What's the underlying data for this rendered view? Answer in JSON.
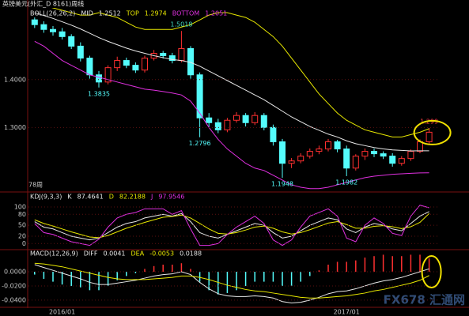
{
  "watermark": "FX678 汇通网",
  "chart_data": [
    {
      "type": "candlestick",
      "title": "英镑美元(外汇_D 8161)周线",
      "indicator": "BOLL(26,26,2)",
      "open": [
        1.525,
        1.515,
        1.505,
        1.5,
        1.49,
        1.47,
        1.445,
        1.41,
        1.395,
        1.425,
        1.44,
        1.43,
        1.42,
        1.445,
        1.455,
        1.45,
        1.44,
        1.465,
        1.41,
        1.32,
        1.31,
        1.295,
        1.315,
        1.325,
        1.31,
        1.325,
        1.3,
        1.27,
        1.225,
        1.23,
        1.24,
        1.25,
        1.255,
        1.27,
        1.255,
        1.215,
        1.24,
        1.25,
        1.245,
        1.24,
        1.225,
        1.235,
        1.25,
        1.27
      ],
      "high": [
        1.53,
        1.522,
        1.512,
        1.508,
        1.495,
        1.478,
        1.45,
        1.418,
        1.43,
        1.448,
        1.446,
        1.436,
        1.45,
        1.462,
        1.46,
        1.456,
        1.5018,
        1.47,
        1.415,
        1.33,
        1.318,
        1.32,
        1.332,
        1.33,
        1.332,
        1.33,
        1.306,
        1.276,
        1.236,
        1.246,
        1.256,
        1.262,
        1.276,
        1.274,
        1.262,
        1.244,
        1.256,
        1.256,
        1.25,
        1.246,
        1.24,
        1.254,
        1.275,
        1.299
      ],
      "low": [
        1.508,
        1.498,
        1.492,
        1.484,
        1.464,
        1.438,
        1.402,
        1.3835,
        1.39,
        1.418,
        1.424,
        1.414,
        1.415,
        1.44,
        1.444,
        1.434,
        1.436,
        1.402,
        1.2796,
        1.3,
        1.288,
        1.29,
        1.31,
        1.302,
        1.305,
        1.294,
        1.262,
        1.1948,
        1.215,
        1.225,
        1.235,
        1.244,
        1.25,
        1.248,
        1.1982,
        1.21,
        1.232,
        1.238,
        1.234,
        1.218,
        1.22,
        1.23,
        1.246,
        1.266
      ],
      "close": [
        1.515,
        1.505,
        1.5,
        1.49,
        1.47,
        1.445,
        1.41,
        1.395,
        1.425,
        1.44,
        1.43,
        1.42,
        1.445,
        1.455,
        1.45,
        1.44,
        1.465,
        1.41,
        1.32,
        1.31,
        1.295,
        1.315,
        1.325,
        1.31,
        1.325,
        1.3,
        1.27,
        1.225,
        1.23,
        1.24,
        1.25,
        1.255,
        1.27,
        1.255,
        1.215,
        1.24,
        1.25,
        1.245,
        1.24,
        1.225,
        1.235,
        1.25,
        1.27,
        1.29
      ],
      "up_color": "#ff3030",
      "down_color": "#54fcfc",
      "series": [
        {
          "name": "MID",
          "color": "#e8e8e8",
          "values": [
            1.54,
            1.534,
            1.528,
            1.521,
            1.514,
            1.506,
            1.497,
            1.488,
            1.48,
            1.473,
            1.466,
            1.46,
            1.455,
            1.45,
            1.446,
            1.442,
            1.44,
            1.436,
            1.428,
            1.418,
            1.408,
            1.398,
            1.388,
            1.378,
            1.368,
            1.358,
            1.346,
            1.334,
            1.322,
            1.312,
            1.302,
            1.294,
            1.286,
            1.28,
            1.272,
            1.266,
            1.262,
            1.258,
            1.255,
            1.253,
            1.252,
            1.251,
            1.2512,
            1.2512
          ]
        },
        {
          "name": "TOP",
          "color": "#e8e800",
          "values": [
            1.56,
            1.555,
            1.55,
            1.545,
            1.54,
            1.535,
            1.535,
            1.54,
            1.535,
            1.53,
            1.52,
            1.51,
            1.505,
            1.505,
            1.505,
            1.505,
            1.51,
            1.515,
            1.525,
            1.535,
            1.54,
            1.54,
            1.535,
            1.53,
            1.52,
            1.505,
            1.49,
            1.47,
            1.445,
            1.42,
            1.395,
            1.37,
            1.35,
            1.33,
            1.315,
            1.305,
            1.295,
            1.29,
            1.285,
            1.28,
            1.28,
            1.285,
            1.29,
            1.2974
          ]
        },
        {
          "name": "BOTTOM",
          "color": "#e030e0",
          "values": [
            1.48,
            1.47,
            1.455,
            1.44,
            1.43,
            1.42,
            1.41,
            1.405,
            1.4,
            1.395,
            1.39,
            1.385,
            1.38,
            1.378,
            1.375,
            1.372,
            1.368,
            1.355,
            1.33,
            1.3,
            1.275,
            1.255,
            1.24,
            1.225,
            1.215,
            1.21,
            1.2,
            1.19,
            1.18,
            1.175,
            1.172,
            1.172,
            1.175,
            1.18,
            1.185,
            1.19,
            1.195,
            1.198,
            1.2,
            1.202,
            1.203,
            1.204,
            1.205,
            1.2051
          ]
        }
      ],
      "annotations": [
        {
          "x": 16,
          "value": 1.5018,
          "color": "#40d8c0"
        },
        {
          "x": 7,
          "value": 1.3835,
          "color": "#54fcfc"
        },
        {
          "x": 18,
          "value": 1.2796,
          "color": "#54fcfc"
        },
        {
          "x": 27,
          "value": 1.1948,
          "color": "#54fcfc"
        },
        {
          "x": 34,
          "value": 1.1982,
          "color": "#54fcfc"
        },
        {
          "x": 43,
          "value": 1.299,
          "color": "#ff4040"
        }
      ],
      "period_label": "78周",
      "ylim": [
        1.17,
        1.55
      ],
      "yticks": [
        {
          "value": 1.4,
          "label": "1.4000"
        },
        {
          "value": 1.3,
          "label": "1.3000"
        }
      ]
    },
    {
      "type": "line",
      "indicator": "KDJ(9,3,3)",
      "series": [
        {
          "name": "K",
          "color": "#e8e8e8",
          "values": [
            60,
            45,
            40,
            30,
            20,
            15,
            10,
            15,
            30,
            45,
            55,
            60,
            70,
            75,
            80,
            75,
            82,
            60,
            30,
            20,
            15,
            25,
            35,
            45,
            55,
            50,
            30,
            15,
            20,
            35,
            50,
            60,
            70,
            65,
            40,
            30,
            45,
            55,
            50,
            40,
            35,
            55,
            75,
            87.4641
          ]
        },
        {
          "name": "D",
          "color": "#e8e800",
          "values": [
            65,
            55,
            48,
            40,
            32,
            25,
            18,
            16,
            22,
            32,
            42,
            50,
            58,
            65,
            72,
            74,
            78,
            70,
            55,
            40,
            28,
            26,
            30,
            37,
            45,
            48,
            42,
            32,
            26,
            30,
            38,
            47,
            56,
            60,
            52,
            42,
            42,
            47,
            49,
            46,
            41,
            46,
            58,
            82.2188
          ]
        },
        {
          "name": "J",
          "color": "#e030e0",
          "values": [
            55,
            30,
            25,
            15,
            5,
            0,
            -5,
            12,
            45,
            70,
            80,
            85,
            95,
            95,
            95,
            80,
            90,
            40,
            -5,
            -5,
            0,
            25,
            45,
            60,
            75,
            55,
            10,
            -5,
            10,
            45,
            75,
            85,
            95,
            75,
            15,
            5,
            50,
            70,
            55,
            28,
            22,
            75,
            105,
            97.9546
          ]
        }
      ],
      "ylim": [
        -8,
        126
      ],
      "yticks": [
        100,
        80,
        50,
        20,
        0
      ]
    },
    {
      "type": "macd",
      "indicator": "MACD(12,26,9)",
      "series": [
        {
          "name": "DIFF",
          "color": "#e8e8e8",
          "values": [
            0.01,
            0.006,
            0.002,
            -0.002,
            -0.006,
            -0.01,
            -0.015,
            -0.018,
            -0.018,
            -0.016,
            -0.014,
            -0.012,
            -0.009,
            -0.006,
            -0.004,
            -0.003,
            0.0,
            -0.004,
            -0.015,
            -0.024,
            -0.031,
            -0.034,
            -0.035,
            -0.035,
            -0.034,
            -0.035,
            -0.037,
            -0.042,
            -0.044,
            -0.043,
            -0.04,
            -0.036,
            -0.031,
            -0.028,
            -0.027,
            -0.024,
            -0.02,
            -0.016,
            -0.013,
            -0.011,
            -0.008,
            -0.004,
            0.0,
            0.0041
          ]
        },
        {
          "name": "DEA",
          "color": "#e8e800",
          "values": [
            0.012,
            0.011,
            0.009,
            0.007,
            0.004,
            0.001,
            -0.002,
            -0.005,
            -0.008,
            -0.01,
            -0.011,
            -0.011,
            -0.011,
            -0.01,
            -0.009,
            -0.008,
            -0.006,
            -0.006,
            -0.008,
            -0.011,
            -0.015,
            -0.019,
            -0.022,
            -0.025,
            -0.027,
            -0.028,
            -0.03,
            -0.032,
            -0.034,
            -0.036,
            -0.037,
            -0.037,
            -0.036,
            -0.035,
            -0.034,
            -0.032,
            -0.03,
            -0.027,
            -0.025,
            -0.022,
            -0.019,
            -0.016,
            -0.012,
            -0.0053
          ]
        }
      ],
      "histogram": {
        "up_color": "#ff3030",
        "down_color": "#54fcfc",
        "values": [
          -0.004,
          -0.01,
          -0.014,
          -0.018,
          -0.02,
          -0.022,
          -0.026,
          -0.026,
          -0.02,
          -0.012,
          -0.006,
          -0.002,
          0.004,
          0.008,
          0.01,
          0.01,
          0.012,
          0.004,
          -0.014,
          -0.026,
          -0.032,
          -0.03,
          -0.026,
          -0.02,
          -0.014,
          -0.014,
          -0.014,
          -0.02,
          -0.02,
          -0.014,
          -0.006,
          0.002,
          0.01,
          0.014,
          0.014,
          0.016,
          0.02,
          0.022,
          0.024,
          0.022,
          0.022,
          0.024,
          0.024,
          0.0188
        ]
      },
      "categories": [
        null,
        null,
        null,
        "2016/01",
        null,
        null,
        null,
        null,
        null,
        null,
        null,
        null,
        null,
        null,
        null,
        null,
        null,
        null,
        null,
        null,
        null,
        null,
        null,
        null,
        null,
        null,
        null,
        null,
        null,
        null,
        null,
        null,
        null,
        null,
        "2017/01",
        null,
        null,
        null,
        null,
        null,
        null,
        null,
        null,
        null
      ],
      "ylim": [
        -0.049,
        0.0267
      ],
      "yticks": [
        {
          "value": 0,
          "label": "0.0000"
        },
        {
          "value": -0.02,
          "label": "-0.0200"
        },
        {
          "value": -0.04,
          "label": "-0.0400"
        }
      ]
    }
  ]
}
